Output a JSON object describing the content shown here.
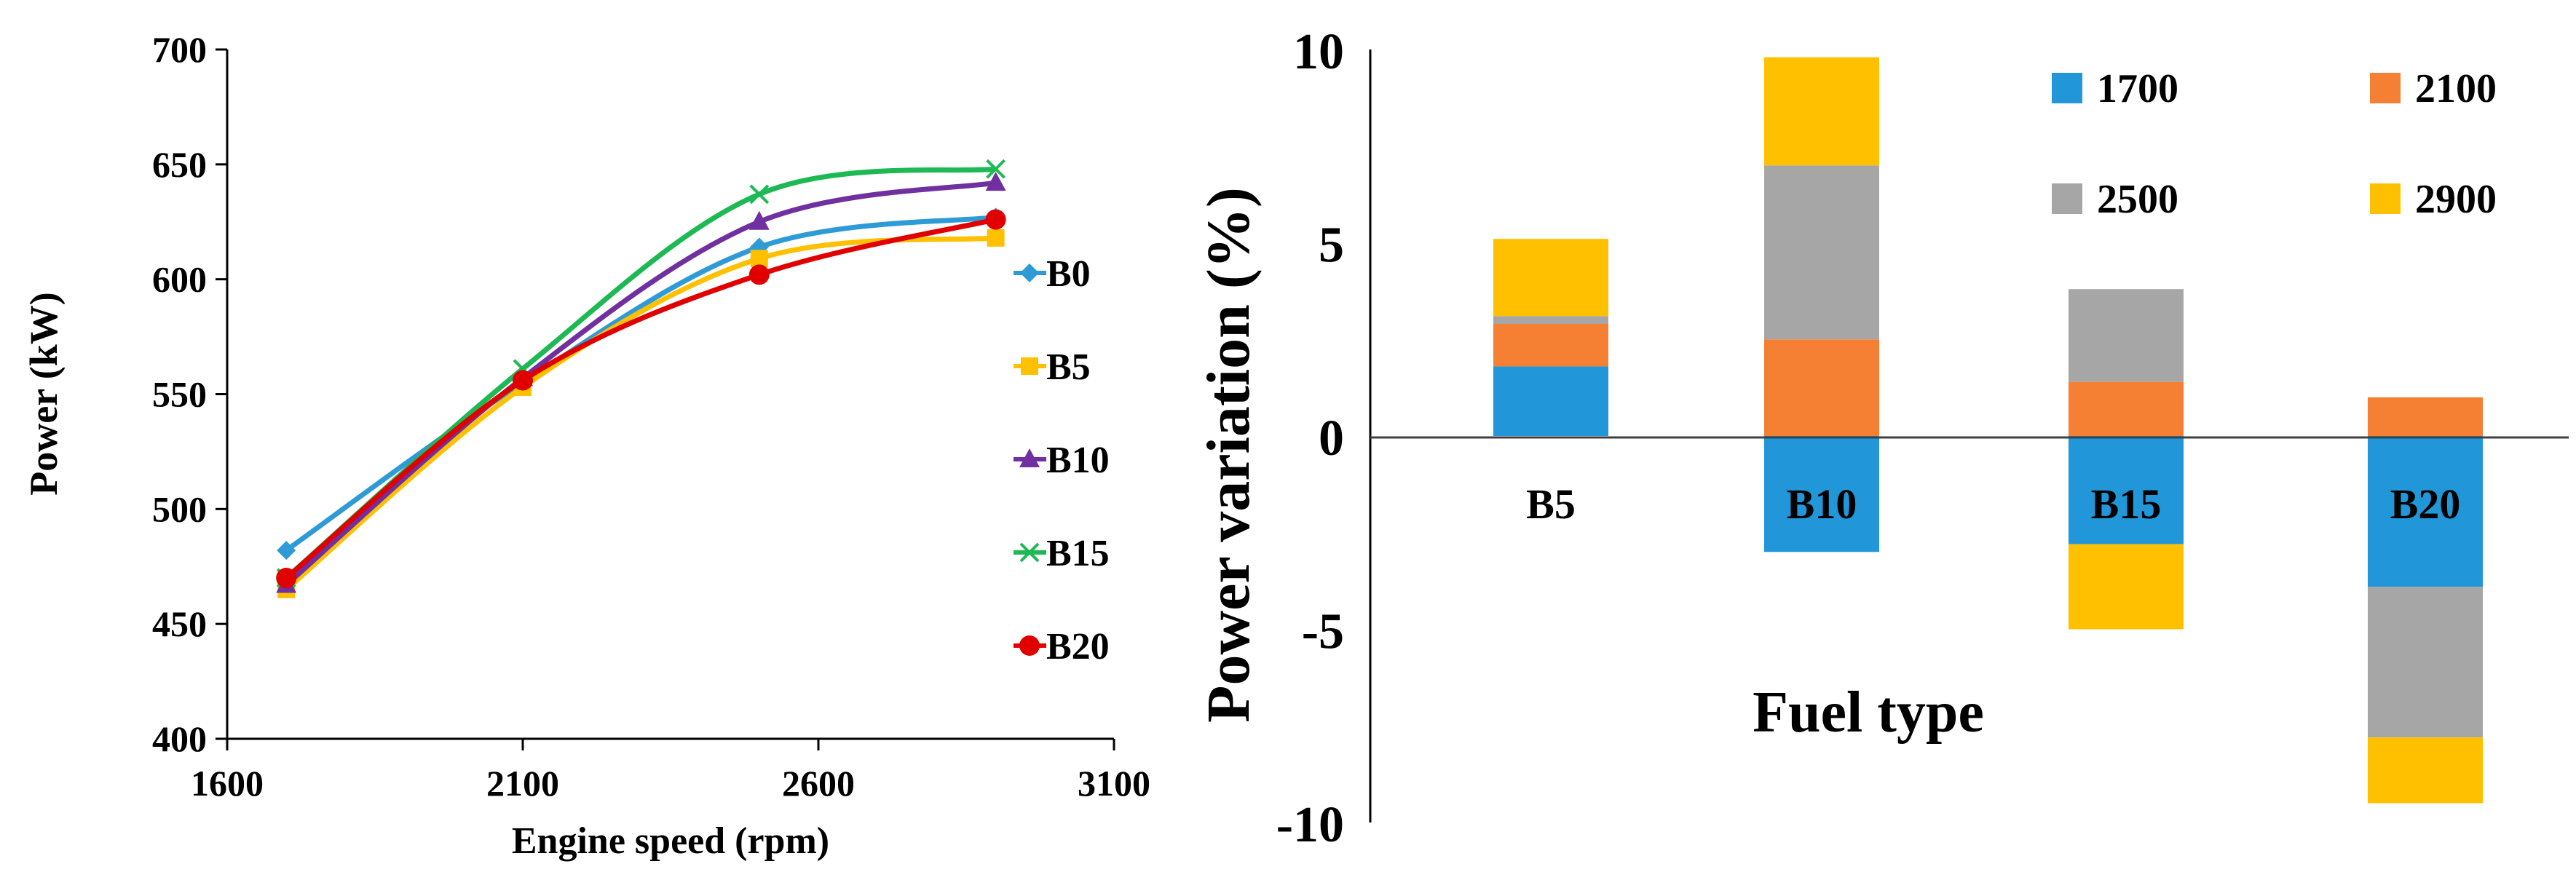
{
  "chart_data": [
    {
      "type": "line",
      "xlabel": "Engine speed (rpm)",
      "ylabel": "Power (kW)",
      "xlim": [
        1600,
        3100
      ],
      "ylim": [
        400,
        700
      ],
      "xticks": [
        "1600",
        "2100",
        "2600",
        "3100"
      ],
      "yticks": [
        "400",
        "450",
        "500",
        "550",
        "600",
        "650",
        "700"
      ],
      "x": [
        1700,
        2100,
        2500,
        2900
      ],
      "legend_position": "right",
      "series": [
        {
          "name": "B0",
          "color": "#2E9BD6",
          "marker": "diamond",
          "values": [
            482,
            555,
            614,
            627
          ]
        },
        {
          "name": "B5",
          "color": "#FFC000",
          "marker": "square",
          "values": [
            465,
            553,
            609,
            618
          ]
        },
        {
          "name": "B10",
          "color": "#7030A0",
          "marker": "triangle",
          "values": [
            467,
            557,
            625,
            642
          ]
        },
        {
          "name": "B15",
          "color": "#1DB954",
          "marker": "cross",
          "values": [
            470,
            561,
            637,
            648
          ]
        },
        {
          "name": "B20",
          "color": "#E00000",
          "marker": "circle",
          "values": [
            470,
            556,
            602,
            626
          ]
        }
      ]
    },
    {
      "type": "bar",
      "stacked": true,
      "xlabel": "Fuel type",
      "ylabel": "Power variation (%)",
      "ylim": [
        -10,
        10
      ],
      "yticks": [
        "10",
        "5",
        "0",
        "-5",
        "-10"
      ],
      "categories": [
        "B5",
        "B10",
        "B15",
        "B20"
      ],
      "legend_position": "top-right",
      "series": [
        {
          "name": "1700",
          "color": "#2196D8",
          "values": [
            1.8,
            -3.0,
            -2.8,
            -3.9
          ]
        },
        {
          "name": "2100",
          "color": "#F57F32",
          "values": [
            1.1,
            2.5,
            1.4,
            1.0
          ]
        },
        {
          "name": "2500",
          "color": "#A6A6A6",
          "values": [
            0.2,
            4.5,
            2.4,
            -3.9
          ]
        },
        {
          "name": "2900",
          "color": "#FFC000",
          "values": [
            2.0,
            2.8,
            -2.2,
            -1.7
          ]
        }
      ]
    }
  ]
}
